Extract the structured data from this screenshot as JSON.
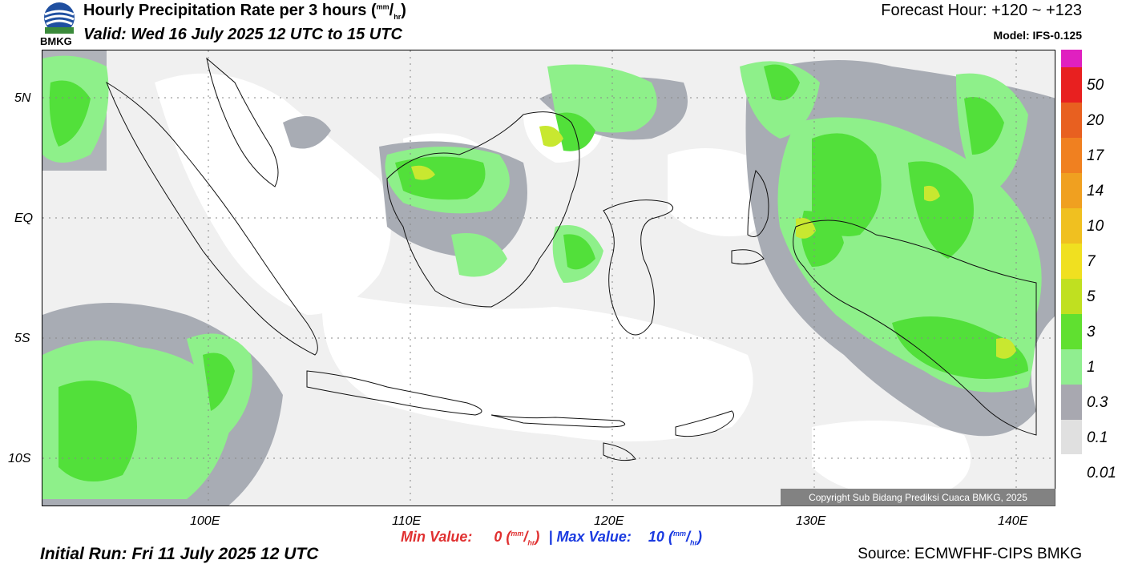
{
  "header": {
    "title": "Hourly Precipitation Rate per 3 hours",
    "title_unit_num": "mm",
    "title_unit_den": "hr",
    "valid": "Valid: Wed 16 July 2025 12 UTC to 15 UTC",
    "forecast_hour": "Forecast Hour: +120 ~ +123",
    "model": "Model: IFS-0.125",
    "logo_text": "BMKG"
  },
  "map": {
    "lat_labels": [
      "5N",
      "EQ",
      "5S",
      "10S"
    ],
    "lon_labels": [
      "100E",
      "110E",
      "120E",
      "130E",
      "140E"
    ],
    "copyright": "Copyright Sub Bidang Prediksi Cuaca BMKG, 2025"
  },
  "legend": {
    "levels": [
      "50",
      "20",
      "17",
      "14",
      "10",
      "7",
      "5",
      "3",
      "1",
      "0.3",
      "0.1",
      "0.01"
    ],
    "colors": [
      "#e020c0",
      "#e02020",
      "#e86020",
      "#f08020",
      "#f0a020",
      "#f0c020",
      "#f0e020",
      "#c0e020",
      "#60e030",
      "#90ee90",
      "#a8a8b0",
      "#e0e0e0",
      "#ffffff"
    ]
  },
  "footer": {
    "min_label": "Min Value:",
    "min_value": "0",
    "separator": "|",
    "max_label": "Max Value:",
    "max_value": "10",
    "unit_num": "mm",
    "unit_den": "hr",
    "initial_run": "Initial Run: Fri 11 July 2025 12 UTC",
    "source": "Source: ECMWFHF-CIPS BMKG"
  },
  "colors": {
    "min_color": "#e03030",
    "max_color": "#1a3ae0",
    "light_gray": "#e3e3e3",
    "gray": "#a8acb4",
    "light_green": "#8ef08a",
    "green": "#52e03a",
    "yellow_green": "#c8e830",
    "yellow": "#eee040"
  }
}
